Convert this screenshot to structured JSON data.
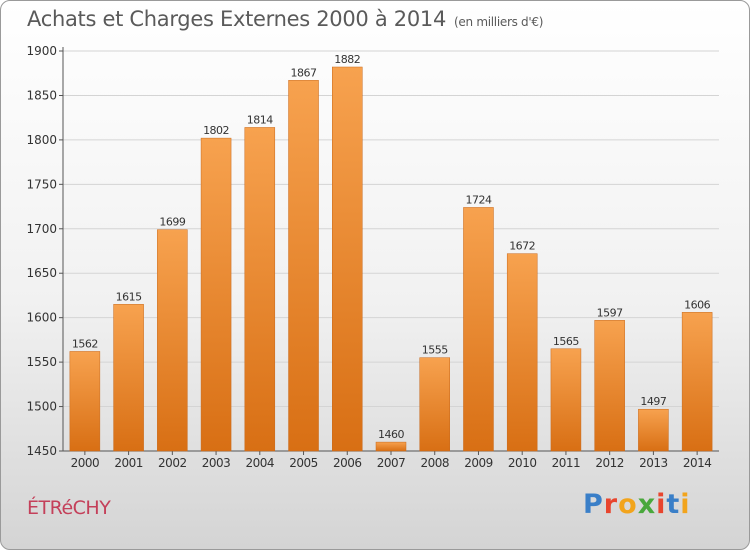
{
  "title": "Achats et Charges Externes 2000 à 2014",
  "subtitle": "(en milliers d'€)",
  "town": "ÉTRéCHY",
  "logo": {
    "text": "Proxiti",
    "letters": [
      {
        "ch": "P",
        "color": "#3a7fc8"
      },
      {
        "ch": "r",
        "color": "#e8452e"
      },
      {
        "ch": "o",
        "color": "#f2a41c"
      },
      {
        "ch": "x",
        "color": "#49a83c"
      },
      {
        "ch": "i",
        "color": "#e8452e"
      },
      {
        "ch": "t",
        "color": "#3a7fc8"
      },
      {
        "ch": "i",
        "color": "#f2a41c"
      }
    ]
  },
  "colors": {
    "bar_light": "#f7a24f",
    "bar_dark": "#d86f14",
    "text": "#333333",
    "grid": "#d4d4d4"
  },
  "chart_data": {
    "type": "bar",
    "categories": [
      "2000",
      "2001",
      "2002",
      "2003",
      "2004",
      "2005",
      "2006",
      "2007",
      "2008",
      "2009",
      "2010",
      "2011",
      "2012",
      "2013",
      "2014"
    ],
    "values": [
      1562,
      1615,
      1699,
      1802,
      1814,
      1867,
      1882,
      1460,
      1555,
      1724,
      1672,
      1565,
      1597,
      1497,
      1606
    ],
    "ylim": [
      1450,
      1900
    ],
    "yticks": [
      1450,
      1500,
      1550,
      1600,
      1650,
      1700,
      1750,
      1800,
      1850,
      1900
    ],
    "grid": true,
    "xlabel": "",
    "ylabel": ""
  }
}
